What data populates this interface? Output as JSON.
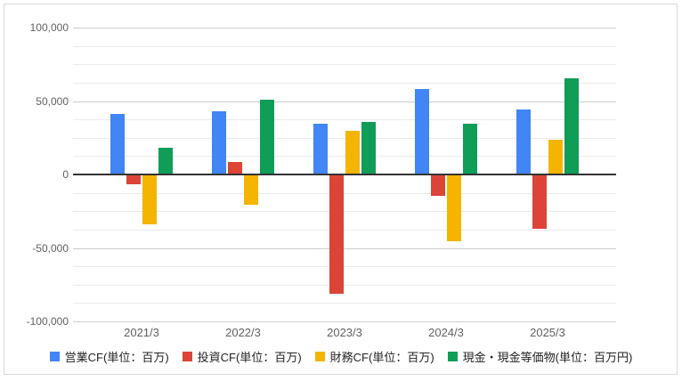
{
  "chart_data": {
    "type": "bar",
    "title": "",
    "xlabel": "",
    "ylabel": "",
    "categories": [
      "2021/3",
      "2022/3",
      "2023/3",
      "2024/3",
      "2025/3"
    ],
    "series": [
      {
        "key": "operating-cf",
        "name": "営業CF(単位：百万)",
        "color": "#4285F4",
        "values": [
          41500,
          43000,
          34500,
          58000,
          44000
        ]
      },
      {
        "key": "investing-cf",
        "name": "投資CF(単位：百万)",
        "color": "#DB4437",
        "values": [
          -6500,
          8500,
          -81000,
          -14500,
          -37000
        ]
      },
      {
        "key": "financing-cf",
        "name": "財務CF(単位：百万)",
        "color": "#F4B400",
        "values": [
          -34000,
          -20500,
          30000,
          -45500,
          23500
        ]
      },
      {
        "key": "cash-equivalents",
        "name": "現金・現金等価物(単位：百万円)",
        "color": "#0F9D58",
        "values": [
          18000,
          51000,
          36000,
          34500,
          65500
        ]
      }
    ],
    "ylim": [
      -100000,
      100000
    ],
    "y_major_step": 50000,
    "y_minor_step": 12500,
    "y_tick_labels": [
      "100,000",
      "50,000",
      "0",
      "-50,000",
      "-100,000"
    ],
    "grid": true,
    "legend_position": "bottom",
    "colors": {
      "baseline": "#333333",
      "major_grid": "#cccccc",
      "minor_grid": "#ebebeb",
      "axis_text": "#616161",
      "legend_text": "#222222",
      "frame_border": "#d9d9d9",
      "background": "#ffffff"
    }
  }
}
